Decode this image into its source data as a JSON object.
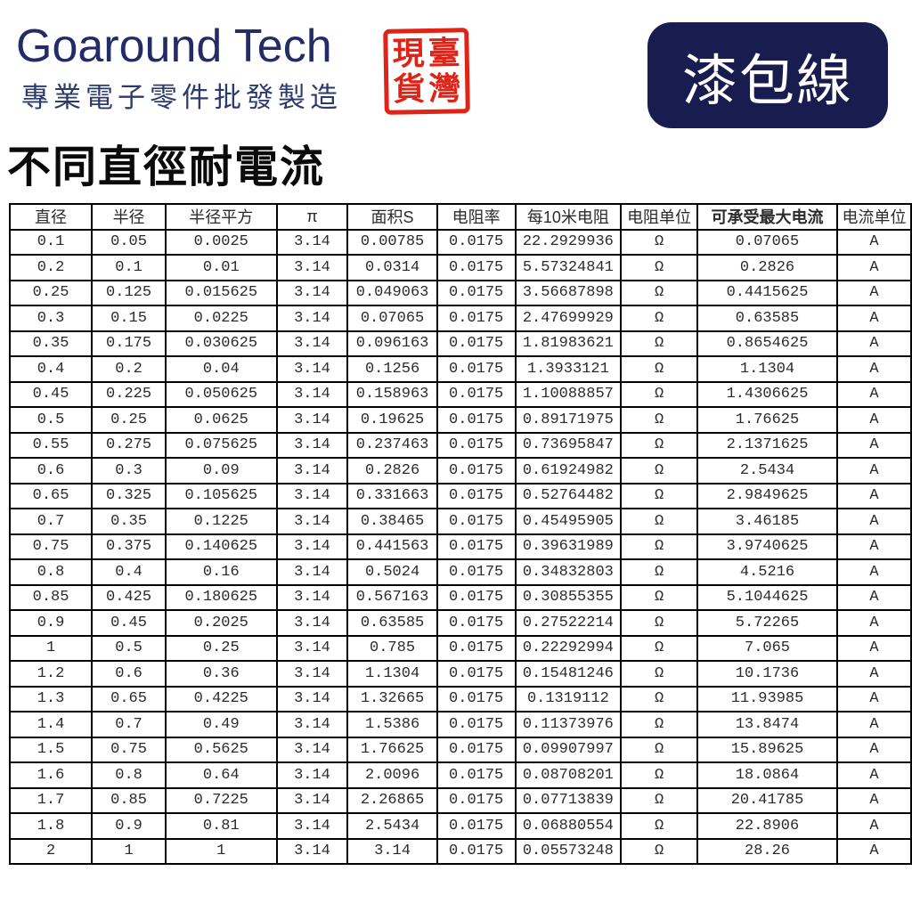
{
  "header": {
    "brand": "Goaround Tech",
    "tagline": "專業電子零件批發製造",
    "stamp": {
      "right_col": [
        "臺",
        "灣"
      ],
      "left_col": [
        "現",
        "貨"
      ]
    },
    "badge": "漆包線"
  },
  "page_title": "不同直徑耐電流",
  "colors": {
    "brand_navy": "#232c67",
    "badge_navy": "#181c4e",
    "badge_text": "#ffffff",
    "stamp_red": "#e02317",
    "title_black": "#0a0a0a",
    "table_border": "#000000"
  },
  "table": {
    "columns": [
      "直径",
      "半径",
      "半径平方",
      "π",
      "面积S",
      "电阻率",
      "每10米电阻",
      "电阻单位",
      "可承受最大电流",
      "电流单位"
    ],
    "rows": [
      [
        "0.1",
        "0.05",
        "0.0025",
        "3.14",
        "0.00785",
        "0.0175",
        "22.2929936",
        "Ω",
        "0.07065",
        "A"
      ],
      [
        "0.2",
        "0.1",
        "0.01",
        "3.14",
        "0.0314",
        "0.0175",
        "5.57324841",
        "Ω",
        "0.2826",
        "A"
      ],
      [
        "0.25",
        "0.125",
        "0.015625",
        "3.14",
        "0.049063",
        "0.0175",
        "3.56687898",
        "Ω",
        "0.4415625",
        "A"
      ],
      [
        "0.3",
        "0.15",
        "0.0225",
        "3.14",
        "0.07065",
        "0.0175",
        "2.47699929",
        "Ω",
        "0.63585",
        "A"
      ],
      [
        "0.35",
        "0.175",
        "0.030625",
        "3.14",
        "0.096163",
        "0.0175",
        "1.81983621",
        "Ω",
        "0.8654625",
        "A"
      ],
      [
        "0.4",
        "0.2",
        "0.04",
        "3.14",
        "0.1256",
        "0.0175",
        "1.3933121",
        "Ω",
        "1.1304",
        "A"
      ],
      [
        "0.45",
        "0.225",
        "0.050625",
        "3.14",
        "0.158963",
        "0.0175",
        "1.10088857",
        "Ω",
        "1.4306625",
        "A"
      ],
      [
        "0.5",
        "0.25",
        "0.0625",
        "3.14",
        "0.19625",
        "0.0175",
        "0.89171975",
        "Ω",
        "1.76625",
        "A"
      ],
      [
        "0.55",
        "0.275",
        "0.075625",
        "3.14",
        "0.237463",
        "0.0175",
        "0.73695847",
        "Ω",
        "2.1371625",
        "A"
      ],
      [
        "0.6",
        "0.3",
        "0.09",
        "3.14",
        "0.2826",
        "0.0175",
        "0.61924982",
        "Ω",
        "2.5434",
        "A"
      ],
      [
        "0.65",
        "0.325",
        "0.105625",
        "3.14",
        "0.331663",
        "0.0175",
        "0.52764482",
        "Ω",
        "2.9849625",
        "A"
      ],
      [
        "0.7",
        "0.35",
        "0.1225",
        "3.14",
        "0.38465",
        "0.0175",
        "0.45495905",
        "Ω",
        "3.46185",
        "A"
      ],
      [
        "0.75",
        "0.375",
        "0.140625",
        "3.14",
        "0.441563",
        "0.0175",
        "0.39631989",
        "Ω",
        "3.9740625",
        "A"
      ],
      [
        "0.8",
        "0.4",
        "0.16",
        "3.14",
        "0.5024",
        "0.0175",
        "0.34832803",
        "Ω",
        "4.5216",
        "A"
      ],
      [
        "0.85",
        "0.425",
        "0.180625",
        "3.14",
        "0.567163",
        "0.0175",
        "0.30855355",
        "Ω",
        "5.1044625",
        "A"
      ],
      [
        "0.9",
        "0.45",
        "0.2025",
        "3.14",
        "0.63585",
        "0.0175",
        "0.27522214",
        "Ω",
        "5.72265",
        "A"
      ],
      [
        "1",
        "0.5",
        "0.25",
        "3.14",
        "0.785",
        "0.0175",
        "0.22292994",
        "Ω",
        "7.065",
        "A"
      ],
      [
        "1.2",
        "0.6",
        "0.36",
        "3.14",
        "1.1304",
        "0.0175",
        "0.15481246",
        "Ω",
        "10.1736",
        "A"
      ],
      [
        "1.3",
        "0.65",
        "0.4225",
        "3.14",
        "1.32665",
        "0.0175",
        "0.1319112",
        "Ω",
        "11.93985",
        "A"
      ],
      [
        "1.4",
        "0.7",
        "0.49",
        "3.14",
        "1.5386",
        "0.0175",
        "0.11373976",
        "Ω",
        "13.8474",
        "A"
      ],
      [
        "1.5",
        "0.75",
        "0.5625",
        "3.14",
        "1.76625",
        "0.0175",
        "0.09907997",
        "Ω",
        "15.89625",
        "A"
      ],
      [
        "1.6",
        "0.8",
        "0.64",
        "3.14",
        "2.0096",
        "0.0175",
        "0.08708201",
        "Ω",
        "18.0864",
        "A"
      ],
      [
        "1.7",
        "0.85",
        "0.7225",
        "3.14",
        "2.26865",
        "0.0175",
        "0.07713839",
        "Ω",
        "20.41785",
        "A"
      ],
      [
        "1.8",
        "0.9",
        "0.81",
        "3.14",
        "2.5434",
        "0.0175",
        "0.06880554",
        "Ω",
        "22.8906",
        "A"
      ],
      [
        "2",
        "1",
        "1",
        "3.14",
        "3.14",
        "0.0175",
        "0.05573248",
        "Ω",
        "28.26",
        "A"
      ]
    ]
  }
}
